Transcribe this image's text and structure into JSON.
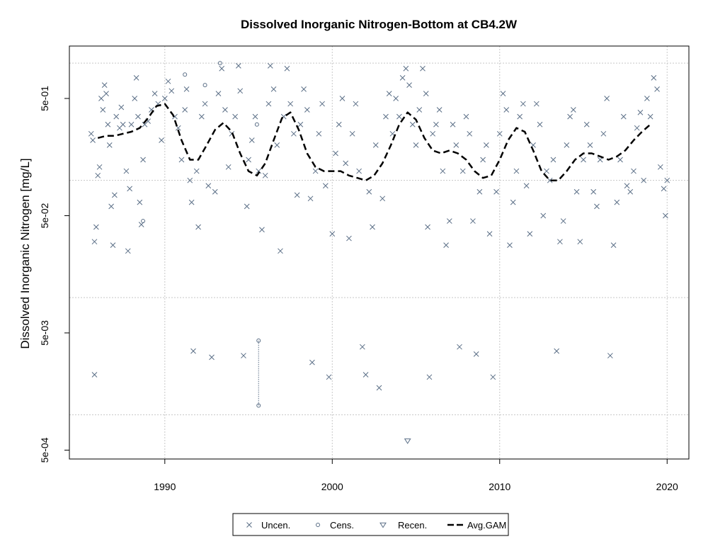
{
  "chart_data": {
    "type": "scatter",
    "title": "Dissolved Inorganic Nitrogen-Bottom at CB4.2W",
    "xlabel": "",
    "ylabel": "Dissolved Inorganic Nitrogen [mg/L]",
    "y_scale": "log10",
    "xlim": [
      1984.3,
      2021.3
    ],
    "ylim": [
      0.00042,
      1.4
    ],
    "x_ticks": [
      1990,
      2000,
      2010,
      2020
    ],
    "x_tick_labels": [
      "1990",
      "2000",
      "2010",
      "2020"
    ],
    "y_ticks": [
      0.0005,
      0.005,
      0.05,
      0.5
    ],
    "y_tick_labels": [
      "5e-04",
      "5e-03",
      "5e-02",
      "5e-01"
    ],
    "y_gridlines": [
      0.001,
      0.01,
      0.1,
      1.0
    ],
    "x_gridlines": [
      1990,
      2000,
      2010,
      2020
    ],
    "grid": true,
    "legend": {
      "position": "bottom-center",
      "entries": [
        "Uncen.",
        "Cens.",
        "Recen.",
        "Avg.GAM"
      ]
    },
    "series": [
      {
        "name": "Uncen.",
        "marker": "x",
        "color": "#5a6e86",
        "points": [
          {
            "x": 1985.6,
            "y": 0.25
          },
          {
            "x": 1985.7,
            "y": 0.22
          },
          {
            "x": 1985.8,
            "y": 0.03
          },
          {
            "x": 1985.9,
            "y": 0.04
          },
          {
            "x": 1985.8,
            "y": 0.0022
          },
          {
            "x": 1986.0,
            "y": 0.11
          },
          {
            "x": 1986.1,
            "y": 0.13
          },
          {
            "x": 1986.2,
            "y": 0.5
          },
          {
            "x": 1986.3,
            "y": 0.4
          },
          {
            "x": 1986.4,
            "y": 0.65
          },
          {
            "x": 1986.5,
            "y": 0.55
          },
          {
            "x": 1986.6,
            "y": 0.3
          },
          {
            "x": 1986.7,
            "y": 0.2
          },
          {
            "x": 1986.8,
            "y": 0.06
          },
          {
            "x": 1986.9,
            "y": 0.028
          },
          {
            "x": 1987.0,
            "y": 0.075
          },
          {
            "x": 1987.1,
            "y": 0.35
          },
          {
            "x": 1987.3,
            "y": 0.28
          },
          {
            "x": 1987.4,
            "y": 0.42
          },
          {
            "x": 1987.5,
            "y": 0.3
          },
          {
            "x": 1987.7,
            "y": 0.12
          },
          {
            "x": 1987.8,
            "y": 0.025
          },
          {
            "x": 1987.9,
            "y": 0.085
          },
          {
            "x": 1988.0,
            "y": 0.3
          },
          {
            "x": 1988.2,
            "y": 0.5
          },
          {
            "x": 1988.3,
            "y": 0.75
          },
          {
            "x": 1988.4,
            "y": 0.35
          },
          {
            "x": 1988.5,
            "y": 0.065
          },
          {
            "x": 1988.6,
            "y": 0.042
          },
          {
            "x": 1988.7,
            "y": 0.15
          },
          {
            "x": 1988.8,
            "y": 0.3
          },
          {
            "x": 1989.0,
            "y": 0.32
          },
          {
            "x": 1989.2,
            "y": 0.4
          },
          {
            "x": 1989.4,
            "y": 0.55
          },
          {
            "x": 1989.6,
            "y": 0.45
          },
          {
            "x": 1989.8,
            "y": 0.22
          },
          {
            "x": 1990.0,
            "y": 0.5
          },
          {
            "x": 1990.2,
            "y": 0.7
          },
          {
            "x": 1990.4,
            "y": 0.58
          },
          {
            "x": 1990.6,
            "y": 0.35
          },
          {
            "x": 1990.8,
            "y": 0.28
          },
          {
            "x": 1991.0,
            "y": 0.15
          },
          {
            "x": 1991.2,
            "y": 0.4
          },
          {
            "x": 1991.3,
            "y": 0.6
          },
          {
            "x": 1991.5,
            "y": 0.1
          },
          {
            "x": 1991.6,
            "y": 0.065
          },
          {
            "x": 1991.7,
            "y": 0.0035
          },
          {
            "x": 1991.9,
            "y": 0.12
          },
          {
            "x": 1992.0,
            "y": 0.04
          },
          {
            "x": 1992.2,
            "y": 0.35
          },
          {
            "x": 1992.4,
            "y": 0.45
          },
          {
            "x": 1992.6,
            "y": 0.09
          },
          {
            "x": 1992.8,
            "y": 0.0031
          },
          {
            "x": 1993.0,
            "y": 0.08
          },
          {
            "x": 1993.2,
            "y": 0.55
          },
          {
            "x": 1993.4,
            "y": 0.9
          },
          {
            "x": 1993.6,
            "y": 0.4
          },
          {
            "x": 1993.8,
            "y": 0.13
          },
          {
            "x": 1994.0,
            "y": 0.25
          },
          {
            "x": 1994.2,
            "y": 0.35
          },
          {
            "x": 1994.4,
            "y": 0.95
          },
          {
            "x": 1994.5,
            "y": 0.58
          },
          {
            "x": 1994.7,
            "y": 0.0032
          },
          {
            "x": 1994.9,
            "y": 0.06
          },
          {
            "x": 1995.0,
            "y": 0.15
          },
          {
            "x": 1995.2,
            "y": 0.22
          },
          {
            "x": 1995.4,
            "y": 0.35
          },
          {
            "x": 1995.6,
            "y": 0.12
          },
          {
            "x": 1995.8,
            "y": 0.038
          },
          {
            "x": 1996.0,
            "y": 0.11
          },
          {
            "x": 1996.2,
            "y": 0.45
          },
          {
            "x": 1996.3,
            "y": 0.95
          },
          {
            "x": 1996.5,
            "y": 0.6
          },
          {
            "x": 1996.7,
            "y": 0.2
          },
          {
            "x": 1996.9,
            "y": 0.025
          },
          {
            "x": 1997.1,
            "y": 0.35
          },
          {
            "x": 1997.3,
            "y": 0.9
          },
          {
            "x": 1997.5,
            "y": 0.45
          },
          {
            "x": 1997.7,
            "y": 0.25
          },
          {
            "x": 1997.9,
            "y": 0.075
          },
          {
            "x": 1998.1,
            "y": 0.3
          },
          {
            "x": 1998.3,
            "y": 0.6
          },
          {
            "x": 1998.5,
            "y": 0.4
          },
          {
            "x": 1998.7,
            "y": 0.07
          },
          {
            "x": 1998.8,
            "y": 0.0028
          },
          {
            "x": 1999.0,
            "y": 0.12
          },
          {
            "x": 1999.2,
            "y": 0.25
          },
          {
            "x": 1999.4,
            "y": 0.45
          },
          {
            "x": 1999.6,
            "y": 0.09
          },
          {
            "x": 1999.8,
            "y": 0.0021
          },
          {
            "x": 2000.0,
            "y": 0.035
          },
          {
            "x": 2000.2,
            "y": 0.17
          },
          {
            "x": 2000.4,
            "y": 0.3
          },
          {
            "x": 2000.6,
            "y": 0.5
          },
          {
            "x": 2000.8,
            "y": 0.14
          },
          {
            "x": 2001.0,
            "y": 0.032
          },
          {
            "x": 2001.2,
            "y": 0.25
          },
          {
            "x": 2001.4,
            "y": 0.45
          },
          {
            "x": 2001.6,
            "y": 0.12
          },
          {
            "x": 2001.8,
            "y": 0.0038
          },
          {
            "x": 2002.0,
            "y": 0.0022
          },
          {
            "x": 2002.2,
            "y": 0.08
          },
          {
            "x": 2002.4,
            "y": 0.04
          },
          {
            "x": 2002.6,
            "y": 0.2
          },
          {
            "x": 2002.8,
            "y": 0.0017
          },
          {
            "x": 2003.0,
            "y": 0.07
          },
          {
            "x": 2003.2,
            "y": 0.35
          },
          {
            "x": 2003.4,
            "y": 0.55
          },
          {
            "x": 2003.6,
            "y": 0.25
          },
          {
            "x": 2003.8,
            "y": 0.5
          },
          {
            "x": 2004.0,
            "y": 0.35
          },
          {
            "x": 2004.2,
            "y": 0.75
          },
          {
            "x": 2004.4,
            "y": 0.9
          },
          {
            "x": 2004.6,
            "y": 0.65
          },
          {
            "x": 2004.8,
            "y": 0.3
          },
          {
            "x": 2005.0,
            "y": 0.2
          },
          {
            "x": 2005.2,
            "y": 0.4
          },
          {
            "x": 2005.4,
            "y": 0.9
          },
          {
            "x": 2005.6,
            "y": 0.55
          },
          {
            "x": 2005.7,
            "y": 0.04
          },
          {
            "x": 2005.8,
            "y": 0.0021
          },
          {
            "x": 2006.0,
            "y": 0.25
          },
          {
            "x": 2006.2,
            "y": 0.3
          },
          {
            "x": 2006.4,
            "y": 0.4
          },
          {
            "x": 2006.6,
            "y": 0.12
          },
          {
            "x": 2006.8,
            "y": 0.028
          },
          {
            "x": 2007.0,
            "y": 0.045
          },
          {
            "x": 2007.2,
            "y": 0.3
          },
          {
            "x": 2007.4,
            "y": 0.2
          },
          {
            "x": 2007.6,
            "y": 0.0038
          },
          {
            "x": 2007.8,
            "y": 0.12
          },
          {
            "x": 2008.0,
            "y": 0.35
          },
          {
            "x": 2008.2,
            "y": 0.25
          },
          {
            "x": 2008.4,
            "y": 0.045
          },
          {
            "x": 2008.6,
            "y": 0.0033
          },
          {
            "x": 2008.8,
            "y": 0.08
          },
          {
            "x": 2009.0,
            "y": 0.15
          },
          {
            "x": 2009.2,
            "y": 0.2
          },
          {
            "x": 2009.4,
            "y": 0.035
          },
          {
            "x": 2009.6,
            "y": 0.0021
          },
          {
            "x": 2009.8,
            "y": 0.08
          },
          {
            "x": 2010.0,
            "y": 0.25
          },
          {
            "x": 2010.2,
            "y": 0.55
          },
          {
            "x": 2010.4,
            "y": 0.4
          },
          {
            "x": 2010.6,
            "y": 0.028
          },
          {
            "x": 2010.8,
            "y": 0.065
          },
          {
            "x": 2011.0,
            "y": 0.12
          },
          {
            "x": 2011.2,
            "y": 0.35
          },
          {
            "x": 2011.4,
            "y": 0.45
          },
          {
            "x": 2011.6,
            "y": 0.09
          },
          {
            "x": 2011.8,
            "y": 0.035
          },
          {
            "x": 2012.0,
            "y": 0.2
          },
          {
            "x": 2012.2,
            "y": 0.45
          },
          {
            "x": 2012.4,
            "y": 0.3
          },
          {
            "x": 2012.6,
            "y": 0.05
          },
          {
            "x": 2012.8,
            "y": 0.12
          },
          {
            "x": 2013.0,
            "y": 0.1
          },
          {
            "x": 2013.2,
            "y": 0.15
          },
          {
            "x": 2013.4,
            "y": 0.0035
          },
          {
            "x": 2013.6,
            "y": 0.03
          },
          {
            "x": 2013.8,
            "y": 0.045
          },
          {
            "x": 2014.0,
            "y": 0.2
          },
          {
            "x": 2014.2,
            "y": 0.35
          },
          {
            "x": 2014.4,
            "y": 0.4
          },
          {
            "x": 2014.6,
            "y": 0.08
          },
          {
            "x": 2014.8,
            "y": 0.03
          },
          {
            "x": 2015.0,
            "y": 0.15
          },
          {
            "x": 2015.2,
            "y": 0.3
          },
          {
            "x": 2015.4,
            "y": 0.2
          },
          {
            "x": 2015.6,
            "y": 0.08
          },
          {
            "x": 2015.8,
            "y": 0.06
          },
          {
            "x": 2016.0,
            "y": 0.15
          },
          {
            "x": 2016.2,
            "y": 0.25
          },
          {
            "x": 2016.4,
            "y": 0.5
          },
          {
            "x": 2016.6,
            "y": 0.0032
          },
          {
            "x": 2016.8,
            "y": 0.028
          },
          {
            "x": 2017.0,
            "y": 0.065
          },
          {
            "x": 2017.2,
            "y": 0.15
          },
          {
            "x": 2017.4,
            "y": 0.35
          },
          {
            "x": 2017.6,
            "y": 0.09
          },
          {
            "x": 2017.8,
            "y": 0.08
          },
          {
            "x": 2018.0,
            "y": 0.12
          },
          {
            "x": 2018.2,
            "y": 0.28
          },
          {
            "x": 2018.4,
            "y": 0.38
          },
          {
            "x": 2018.6,
            "y": 0.1
          },
          {
            "x": 2018.8,
            "y": 0.5
          },
          {
            "x": 2019.0,
            "y": 0.35
          },
          {
            "x": 2019.2,
            "y": 0.75
          },
          {
            "x": 2019.4,
            "y": 0.6
          },
          {
            "x": 2019.6,
            "y": 0.13
          },
          {
            "x": 2019.8,
            "y": 0.085
          },
          {
            "x": 2019.9,
            "y": 0.05
          },
          {
            "x": 2020.0,
            "y": 0.1
          }
        ]
      },
      {
        "name": "Cens.",
        "marker": "circle",
        "color": "#5a6e86",
        "points": [
          {
            "x": 1988.7,
            "y": 0.045
          },
          {
            "x": 1991.2,
            "y": 0.8
          },
          {
            "x": 1992.4,
            "y": 0.65
          },
          {
            "x": 1993.3,
            "y": 1.0
          },
          {
            "x": 1995.5,
            "y": 0.3
          },
          {
            "x": 1995.6,
            "y": 0.0043
          },
          {
            "x": 1995.6,
            "y": 0.0012
          }
        ],
        "range_line": {
          "x": 1995.6,
          "y_from": 0.0043,
          "y_to": 0.0012
        }
      },
      {
        "name": "Recen.",
        "marker": "triangle-down",
        "color": "#5a6e86",
        "points": [
          {
            "x": 2004.5,
            "y": 0.0006
          }
        ]
      },
      {
        "name": "Avg.GAM",
        "line": "dashed",
        "color": "#000000",
        "x": [
          1986.0,
          1986.5,
          1987.0,
          1987.5,
          1988.0,
          1988.5,
          1989.0,
          1989.5,
          1990.0,
          1990.5,
          1991.0,
          1991.5,
          1992.0,
          1992.5,
          1993.0,
          1993.5,
          1994.0,
          1994.5,
          1995.0,
          1995.5,
          1996.0,
          1996.5,
          1997.0,
          1997.5,
          1998.0,
          1998.5,
          1999.0,
          1999.5,
          2000.0,
          2000.5,
          2001.0,
          2001.5,
          2002.0,
          2002.5,
          2003.0,
          2003.5,
          2004.0,
          2004.5,
          2005.0,
          2005.5,
          2006.0,
          2006.5,
          2007.0,
          2007.5,
          2008.0,
          2008.5,
          2009.0,
          2009.5,
          2010.0,
          2010.5,
          2011.0,
          2011.5,
          2012.0,
          2012.5,
          2013.0,
          2013.5,
          2014.0,
          2014.5,
          2015.0,
          2015.5,
          2016.0,
          2016.5,
          2017.0,
          2017.5,
          2018.0,
          2018.5,
          2019.0
        ],
        "y": [
          0.23,
          0.24,
          0.24,
          0.25,
          0.26,
          0.28,
          0.34,
          0.43,
          0.45,
          0.36,
          0.22,
          0.15,
          0.15,
          0.2,
          0.27,
          0.31,
          0.26,
          0.17,
          0.12,
          0.11,
          0.14,
          0.22,
          0.34,
          0.38,
          0.27,
          0.17,
          0.13,
          0.12,
          0.12,
          0.12,
          0.11,
          0.105,
          0.1,
          0.11,
          0.14,
          0.2,
          0.3,
          0.38,
          0.33,
          0.23,
          0.18,
          0.17,
          0.18,
          0.17,
          0.15,
          0.12,
          0.105,
          0.11,
          0.15,
          0.22,
          0.28,
          0.26,
          0.18,
          0.12,
          0.1,
          0.1,
          0.12,
          0.15,
          0.17,
          0.17,
          0.16,
          0.15,
          0.16,
          0.18,
          0.22,
          0.26,
          0.3
        ]
      }
    ]
  }
}
